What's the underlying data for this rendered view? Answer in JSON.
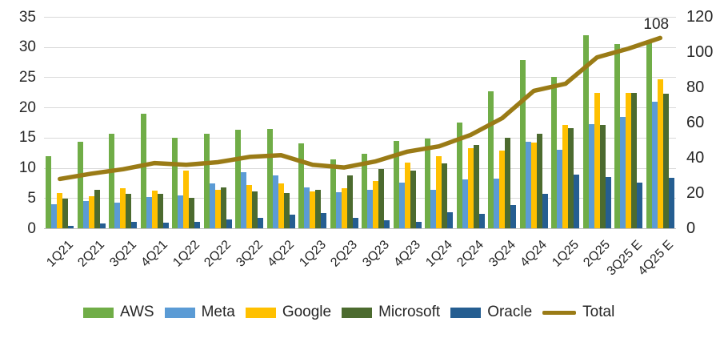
{
  "chart_data": {
    "type": "combo-bar-line",
    "title": "",
    "categories": [
      "1Q21",
      "2Q21",
      "3Q21",
      "4Q21",
      "1Q22",
      "2Q22",
      "3Q22",
      "4Q22",
      "1Q23",
      "2Q23",
      "3Q23",
      "4Q23",
      "1Q24",
      "2Q24",
      "3Q24",
      "4Q24",
      "1Q25",
      "2Q25",
      "3Q25 E",
      "4Q25 E"
    ],
    "bar_series": [
      {
        "name": "AWS",
        "color": "#70AD47",
        "values": [
          12.0,
          14.3,
          15.7,
          18.9,
          15.0,
          15.6,
          16.3,
          16.5,
          14.1,
          11.4,
          12.3,
          14.5,
          14.9,
          17.5,
          22.7,
          27.8,
          25.0,
          32.0,
          30.5,
          30.8
        ]
      },
      {
        "name": "Meta",
        "color": "#5B9BD5",
        "values": [
          4.0,
          4.5,
          4.2,
          5.2,
          5.4,
          7.4,
          9.3,
          8.8,
          6.7,
          6.0,
          6.4,
          7.6,
          6.3,
          8.1,
          8.2,
          14.3,
          13.0,
          17.2,
          18.4,
          21.0
        ]
      },
      {
        "name": "Google",
        "color": "#FFC000",
        "values": [
          5.9,
          5.3,
          6.6,
          6.2,
          9.6,
          6.4,
          7.2,
          7.4,
          6.1,
          6.6,
          7.8,
          10.9,
          11.9,
          13.2,
          12.9,
          14.2,
          17.1,
          22.4,
          22.4,
          24.7
        ]
      },
      {
        "name": "Microsoft",
        "color": "#4C6B2F",
        "values": [
          4.9,
          6.3,
          5.7,
          5.7,
          5.1,
          6.7,
          6.1,
          5.9,
          6.3,
          8.8,
          9.8,
          9.6,
          10.8,
          13.8,
          15.0,
          15.7,
          16.6,
          17.1,
          22.4,
          22.3
        ]
      },
      {
        "name": "Oracle",
        "color": "#255E91",
        "values": [
          0.4,
          0.8,
          1.0,
          0.9,
          1.0,
          1.4,
          1.7,
          2.2,
          2.5,
          1.7,
          1.3,
          1.0,
          2.7,
          2.4,
          3.9,
          5.7,
          8.9,
          8.5,
          7.6,
          8.3
        ]
      }
    ],
    "line_series": {
      "name": "Total",
      "color": "#9A7B16",
      "axis": "right",
      "values": [
        28,
        31,
        33.5,
        37,
        36,
        37.5,
        40.5,
        41.5,
        36,
        34.5,
        38,
        43.5,
        46.5,
        53,
        62.5,
        78,
        82,
        97,
        102,
        108
      ]
    },
    "left_axis": {
      "min": 0,
      "max": 35,
      "ticks": [
        35,
        30,
        25,
        20,
        15,
        10,
        5,
        0
      ]
    },
    "right_axis": {
      "min": 0,
      "max": 120,
      "ticks": [
        120,
        100,
        80,
        60,
        40,
        20,
        0
      ]
    },
    "annotation": {
      "text": "108",
      "attached_to": "4Q25 E"
    },
    "legend": [
      "AWS",
      "Meta",
      "Google",
      "Microsoft",
      "Oracle",
      "Total"
    ],
    "legend_position": "bottom",
    "grid": true
  }
}
